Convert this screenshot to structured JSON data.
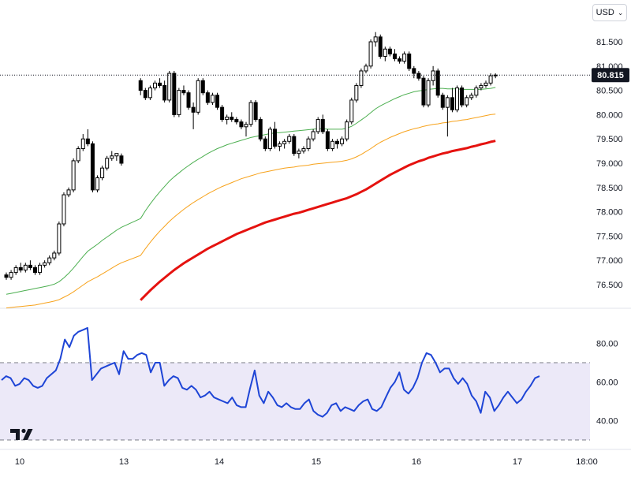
{
  "toolbar": {
    "currency_label": "USD",
    "currency_icon": "chevron-down-icon"
  },
  "logo": {
    "name": "tradingview-logo"
  },
  "colors": {
    "candle_up_fill": "#ffffff",
    "candle_down_fill": "#000000",
    "candle_border": "#000000",
    "ma_short": "#4caf50",
    "ma_mid": "#f7a21b",
    "ma_long": "#e5120f",
    "rsi_line": "#1e45d6",
    "rsi_band": "#ece9f8",
    "price_label_bg": "#131722"
  },
  "chart_data": [
    {
      "type": "candlestick",
      "last_price_label": "80.815",
      "last_price": 80.815,
      "ylim": [
        76.2,
        81.95
      ],
      "y_ticks": [
        "76.500",
        "77.000",
        "77.500",
        "78.000",
        "78.500",
        "79.000",
        "79.500",
        "80.000",
        "80.500",
        "81.000",
        "81.500"
      ],
      "x_tick_labels": [
        "10",
        "13",
        "14",
        "15",
        "16",
        "17",
        "18:00"
      ],
      "candles": [
        [
          76.7,
          76.75,
          76.6,
          76.65
        ],
        [
          76.65,
          76.8,
          76.6,
          76.75
        ],
        [
          76.75,
          76.9,
          76.7,
          76.85
        ],
        [
          76.85,
          76.95,
          76.75,
          76.8
        ],
        [
          76.8,
          76.95,
          76.75,
          76.9
        ],
        [
          76.9,
          77.0,
          76.8,
          76.85
        ],
        [
          76.85,
          76.9,
          76.7,
          76.75
        ],
        [
          76.75,
          76.95,
          76.7,
          76.9
        ],
        [
          76.9,
          77.0,
          76.85,
          76.95
        ],
        [
          76.95,
          77.1,
          76.9,
          77.05
        ],
        [
          77.05,
          77.2,
          77.0,
          77.15
        ],
        [
          77.15,
          77.8,
          77.1,
          77.75
        ],
        [
          77.75,
          78.4,
          77.7,
          78.35
        ],
        [
          78.35,
          78.5,
          78.3,
          78.45
        ],
        [
          78.45,
          79.1,
          78.4,
          79.05
        ],
        [
          79.05,
          79.35,
          79.0,
          79.3
        ],
        [
          79.3,
          79.6,
          79.25,
          79.5
        ],
        [
          79.5,
          79.7,
          79.35,
          79.4
        ],
        [
          79.4,
          79.45,
          78.4,
          78.45
        ],
        [
          78.45,
          78.75,
          78.4,
          78.7
        ],
        [
          78.7,
          78.95,
          78.65,
          78.9
        ],
        [
          78.9,
          79.15,
          78.85,
          79.1
        ],
        [
          79.1,
          79.25,
          79.05,
          79.15
        ],
        [
          79.15,
          79.2,
          79.05,
          79.2
        ],
        [
          79.15,
          79.2,
          78.95,
          79.0
        ],
        [
          80.7,
          80.75,
          80.4,
          80.5
        ],
        [
          80.5,
          80.55,
          80.3,
          80.35
        ],
        [
          80.35,
          80.6,
          80.3,
          80.55
        ],
        [
          80.55,
          80.7,
          80.5,
          80.65
        ],
        [
          80.65,
          80.75,
          80.55,
          80.6
        ],
        [
          80.6,
          80.7,
          80.25,
          80.3
        ],
        [
          80.3,
          80.9,
          80.25,
          80.85
        ],
        [
          80.85,
          80.9,
          79.95,
          80.0
        ],
        [
          80.0,
          80.55,
          79.95,
          80.5
        ],
        [
          80.5,
          80.6,
          80.4,
          80.45
        ],
        [
          80.45,
          80.5,
          80.1,
          80.15
        ],
        [
          80.15,
          80.25,
          79.7,
          80.05
        ],
        [
          80.05,
          80.75,
          80.0,
          80.7
        ],
        [
          80.7,
          80.75,
          80.4,
          80.45
        ],
        [
          80.45,
          80.5,
          80.2,
          80.25
        ],
        [
          80.25,
          80.45,
          80.2,
          80.4
        ],
        [
          80.4,
          80.45,
          80.1,
          80.15
        ],
        [
          80.15,
          80.2,
          79.85,
          79.9
        ],
        [
          79.9,
          80.0,
          79.8,
          79.95
        ],
        [
          79.95,
          80.05,
          79.85,
          79.9
        ],
        [
          79.9,
          79.95,
          79.8,
          79.85
        ],
        [
          79.85,
          79.9,
          79.7,
          79.75
        ],
        [
          79.75,
          79.85,
          79.55,
          79.8
        ],
        [
          79.8,
          80.3,
          79.75,
          80.25
        ],
        [
          80.25,
          80.3,
          79.85,
          79.9
        ],
        [
          79.9,
          79.95,
          79.45,
          79.5
        ],
        [
          79.5,
          79.55,
          79.25,
          79.3
        ],
        [
          79.3,
          79.75,
          79.25,
          79.7
        ],
        [
          79.7,
          79.85,
          79.3,
          79.35
        ],
        [
          79.35,
          79.45,
          79.25,
          79.4
        ],
        [
          79.4,
          79.5,
          79.3,
          79.45
        ],
        [
          79.45,
          79.6,
          79.4,
          79.55
        ],
        [
          79.55,
          79.6,
          79.15,
          79.2
        ],
        [
          79.2,
          79.3,
          79.1,
          79.25
        ],
        [
          79.25,
          79.35,
          79.2,
          79.3
        ],
        [
          79.3,
          79.55,
          79.25,
          79.5
        ],
        [
          79.5,
          79.7,
          79.45,
          79.65
        ],
        [
          79.65,
          79.95,
          79.6,
          79.9
        ],
        [
          79.9,
          80.0,
          79.6,
          79.65
        ],
        [
          79.65,
          79.7,
          79.25,
          79.3
        ],
        [
          79.3,
          79.5,
          79.25,
          79.45
        ],
        [
          79.45,
          79.5,
          79.3,
          79.4
        ],
        [
          79.4,
          79.55,
          79.35,
          79.5
        ],
        [
          79.5,
          79.9,
          79.45,
          79.85
        ],
        [
          79.85,
          80.35,
          79.8,
          80.3
        ],
        [
          80.3,
          80.65,
          80.25,
          80.6
        ],
        [
          80.6,
          80.95,
          80.55,
          80.9
        ],
        [
          80.9,
          81.05,
          80.85,
          81.0
        ],
        [
          81.0,
          81.55,
          80.95,
          81.5
        ],
        [
          81.5,
          81.7,
          81.4,
          81.6
        ],
        [
          81.6,
          81.65,
          81.15,
          81.2
        ],
        [
          81.2,
          81.4,
          81.1,
          81.35
        ],
        [
          81.35,
          81.4,
          81.2,
          81.25
        ],
        [
          81.25,
          81.35,
          81.1,
          81.15
        ],
        [
          81.15,
          81.2,
          81.05,
          81.1
        ],
        [
          81.1,
          81.3,
          81.05,
          81.25
        ],
        [
          81.25,
          81.3,
          80.9,
          80.95
        ],
        [
          80.95,
          81.0,
          80.75,
          80.85
        ],
        [
          80.85,
          80.9,
          80.7,
          80.75
        ],
        [
          80.75,
          80.8,
          80.15,
          80.2
        ],
        [
          80.2,
          80.75,
          80.15,
          80.7
        ],
        [
          80.7,
          81.0,
          80.6,
          80.9
        ],
        [
          80.9,
          80.95,
          80.35,
          80.4
        ],
        [
          80.4,
          80.45,
          80.1,
          80.15
        ],
        [
          80.15,
          80.4,
          79.55,
          80.35
        ],
        [
          80.35,
          80.55,
          80.05,
          80.1
        ],
        [
          80.1,
          80.6,
          80.05,
          80.55
        ],
        [
          80.55,
          80.6,
          80.15,
          80.2
        ],
        [
          80.2,
          80.4,
          80.15,
          80.35
        ],
        [
          80.35,
          80.45,
          80.3,
          80.4
        ],
        [
          80.4,
          80.6,
          80.35,
          80.55
        ],
        [
          80.55,
          80.65,
          80.5,
          80.6
        ],
        [
          80.6,
          80.7,
          80.55,
          80.65
        ],
        [
          80.65,
          80.85,
          80.6,
          80.8
        ],
        [
          80.8,
          80.85,
          80.75,
          80.815
        ]
      ],
      "series": [
        {
          "key": "ma_short",
          "values": [
            76.3,
            76.32,
            76.34,
            76.36,
            76.38,
            76.4,
            76.42,
            76.44,
            76.46,
            76.48,
            76.51,
            76.56,
            76.64,
            76.73,
            76.84,
            76.96,
            77.08,
            77.19,
            77.26,
            77.33,
            77.41,
            77.48,
            77.55,
            77.62,
            77.68,
            77.86,
            78.02,
            78.16,
            78.29,
            78.41,
            78.52,
            78.63,
            78.72,
            78.8,
            78.88,
            78.95,
            79.02,
            79.08,
            79.14,
            79.2,
            79.25,
            79.3,
            79.34,
            79.38,
            79.41,
            79.44,
            79.47,
            79.5,
            79.53,
            79.55,
            79.57,
            79.59,
            79.61,
            79.62,
            79.63,
            79.64,
            79.65,
            79.66,
            79.67,
            79.68,
            79.69,
            79.7,
            79.71,
            79.71,
            79.7,
            79.7,
            79.7,
            79.7,
            79.72,
            79.76,
            79.82,
            79.89,
            79.96,
            80.04,
            80.12,
            80.18,
            80.23,
            80.28,
            80.33,
            80.37,
            80.41,
            80.44,
            80.47,
            80.49,
            80.5,
            80.52,
            80.53,
            80.54,
            80.54,
            80.53,
            80.53,
            80.53,
            80.52,
            80.52,
            80.52,
            80.52,
            80.52,
            80.53,
            80.54,
            80.56
          ]
        },
        {
          "key": "ma_mid",
          "values": [
            76.02,
            76.03,
            76.04,
            76.05,
            76.06,
            76.07,
            76.08,
            76.1,
            76.12,
            76.14,
            76.16,
            76.19,
            76.24,
            76.29,
            76.35,
            76.42,
            76.49,
            76.56,
            76.61,
            76.66,
            76.72,
            76.78,
            76.84,
            76.9,
            76.95,
            77.1,
            77.24,
            77.37,
            77.49,
            77.6,
            77.7,
            77.8,
            77.89,
            77.97,
            78.05,
            78.12,
            78.19,
            78.25,
            78.31,
            78.37,
            78.42,
            78.47,
            78.52,
            78.56,
            78.6,
            78.64,
            78.68,
            78.71,
            78.74,
            78.77,
            78.8,
            78.82,
            78.84,
            78.86,
            78.88,
            78.9,
            78.91,
            78.92,
            78.94,
            78.95,
            78.96,
            78.98,
            78.99,
            79.0,
            79.01,
            79.02,
            79.03,
            79.04,
            79.06,
            79.09,
            79.13,
            79.18,
            79.24,
            79.3,
            79.37,
            79.43,
            79.48,
            79.53,
            79.57,
            79.61,
            79.65,
            79.68,
            79.71,
            79.73,
            79.76,
            79.78,
            79.8,
            79.81,
            79.83,
            79.84,
            79.86,
            79.87,
            79.89,
            79.9,
            79.92,
            79.94,
            79.96,
            79.98,
            80.0,
            80.01
          ]
        },
        {
          "key": "ma_long",
          "values": [
            null,
            null,
            null,
            null,
            null,
            null,
            null,
            null,
            null,
            null,
            null,
            null,
            null,
            null,
            null,
            null,
            null,
            null,
            null,
            null,
            null,
            null,
            null,
            null,
            null,
            76.18,
            76.28,
            76.38,
            76.47,
            76.56,
            76.64,
            76.72,
            76.8,
            76.87,
            76.94,
            77.0,
            77.06,
            77.12,
            77.18,
            77.24,
            77.29,
            77.34,
            77.39,
            77.44,
            77.49,
            77.54,
            77.58,
            77.62,
            77.66,
            77.7,
            77.74,
            77.78,
            77.81,
            77.84,
            77.87,
            77.9,
            77.93,
            77.96,
            77.98,
            78.01,
            78.04,
            78.07,
            78.1,
            78.13,
            78.16,
            78.19,
            78.22,
            78.25,
            78.28,
            78.32,
            78.36,
            78.41,
            78.46,
            78.52,
            78.58,
            78.64,
            78.7,
            78.76,
            78.81,
            78.86,
            78.91,
            78.96,
            79.0,
            79.04,
            79.07,
            79.11,
            79.14,
            79.17,
            79.2,
            79.22,
            79.25,
            79.27,
            79.29,
            79.31,
            79.34,
            79.36,
            79.39,
            79.41,
            79.44,
            79.46
          ]
        }
      ]
    },
    {
      "type": "line",
      "ylim": [
        28,
        92
      ],
      "y_ticks": [
        "40.00",
        "60.00",
        "80.00"
      ],
      "band": [
        30,
        70
      ],
      "rsi": [
        61,
        63,
        62,
        58,
        59,
        62,
        61,
        58,
        57,
        58,
        62,
        64,
        66,
        72,
        82,
        78,
        84,
        86,
        87,
        88,
        61,
        64,
        67,
        68,
        69,
        70,
        64,
        76,
        72,
        72,
        74,
        75,
        74,
        65,
        70,
        70,
        58,
        61,
        63,
        62,
        57,
        56,
        58,
        56,
        52,
        53,
        55,
        52,
        51,
        50,
        49,
        52,
        48,
        47,
        47,
        57,
        66,
        53,
        49,
        55,
        52,
        48,
        47,
        49,
        47,
        46,
        46,
        49,
        51,
        45,
        43,
        42,
        44,
        48,
        49,
        45,
        47,
        46,
        45,
        48,
        50,
        51,
        46,
        45,
        47,
        52,
        57,
        60,
        65,
        56,
        54,
        57,
        62,
        70,
        75,
        74,
        70,
        65,
        67,
        67,
        62,
        59,
        62,
        59,
        53,
        50,
        44,
        55,
        52,
        45,
        48,
        52,
        55,
        52,
        49,
        51,
        55,
        58,
        62,
        63
      ]
    }
  ]
}
